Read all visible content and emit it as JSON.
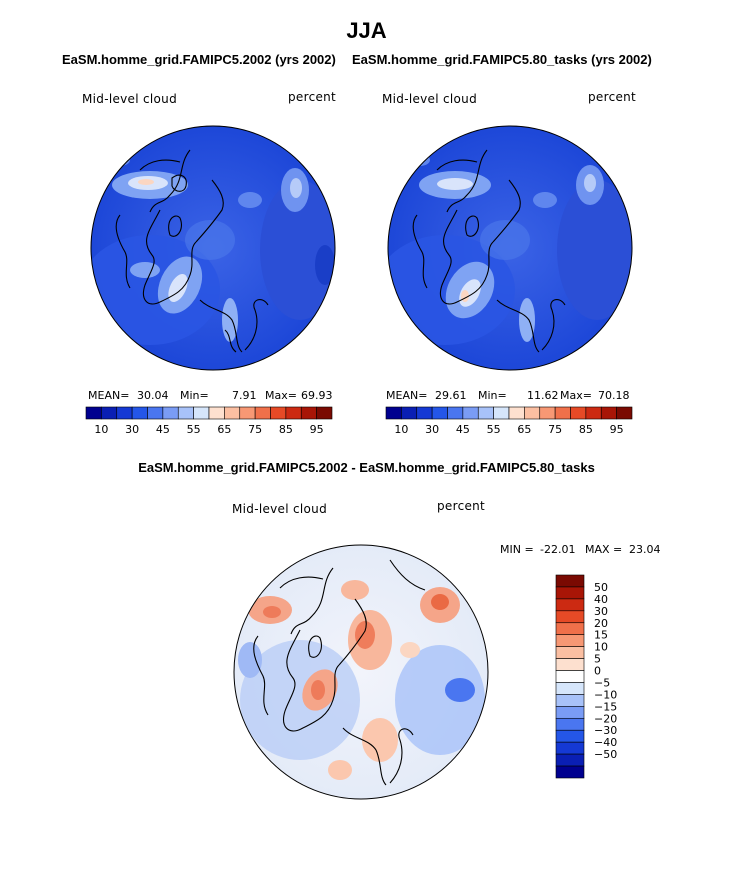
{
  "title": "JJA",
  "panels": [
    {
      "subtitle": "EaSM.homme_grid.FAMIPC5.2002 (yrs 2002)",
      "variable": "Mid-level cloud",
      "units": "percent",
      "stats": {
        "mean_label": "MEAN=",
        "mean": "30.04",
        "min_label": "Min=",
        "min": "7.91",
        "max_label": "Max=",
        "max": "69.93"
      }
    },
    {
      "subtitle": "EaSM.homme_grid.FAMIPC5.80_tasks (yrs 2002)",
      "variable": "Mid-level cloud",
      "units": "percent",
      "stats": {
        "mean_label": "MEAN=",
        "mean": "29.61",
        "min_label": "Min=",
        "min": "11.62",
        "max_label": "Max=",
        "max": "70.18"
      }
    }
  ],
  "abs_colorbar": {
    "colors": [
      "#00008f",
      "#0a1fb4",
      "#1539d4",
      "#2456e8",
      "#4a76f0",
      "#7a9cf5",
      "#a8c2f9",
      "#d6e6fb",
      "#fde0cf",
      "#fbbfa2",
      "#f79874",
      "#f0704a",
      "#e64a26",
      "#cc2a12",
      "#a81506",
      "#7a0a02"
    ],
    "tick_labels": [
      "10",
      "30",
      "45",
      "55",
      "65",
      "75",
      "85",
      "95"
    ]
  },
  "diff_panel": {
    "subtitle": "EaSM.homme_grid.FAMIPC5.2002 - EaSM.homme_grid.FAMIPC5.80_tasks",
    "variable": "Mid-level cloud",
    "units": "percent",
    "min_label": "MIN =",
    "min": "-22.01",
    "max_label": "MAX =",
    "max": "23.04"
  },
  "diff_colorbar": {
    "colors": [
      "#7a0a02",
      "#a81506",
      "#cc2a12",
      "#e64a26",
      "#f0704a",
      "#f79874",
      "#fbbfa2",
      "#fde0cf",
      "#ffffff",
      "#d6e6fb",
      "#a8c2f9",
      "#7a9cf5",
      "#4a76f0",
      "#2456e8",
      "#1539d4",
      "#0a1fb4",
      "#00008f"
    ],
    "tick_labels": [
      "50",
      "40",
      "30",
      "20",
      "15",
      "10",
      "5",
      "0",
      "−5",
      "−10",
      "−15",
      "−20",
      "−30",
      "−40",
      "−50"
    ]
  },
  "chart_data": [
    {
      "type": "heatmap",
      "title": "EaSM.homme_grid.FAMIPC5.2002 (yrs 2002)",
      "variable": "Mid-level cloud",
      "units": "percent",
      "projection": "polar stereographic, North Pole",
      "mean": 30.04,
      "min": 7.91,
      "max": 69.93,
      "levels": [
        10,
        15,
        20,
        25,
        30,
        35,
        40,
        45,
        50,
        55,
        60,
        65,
        70,
        75,
        80,
        85,
        90,
        95
      ]
    },
    {
      "type": "heatmap",
      "title": "EaSM.homme_grid.FAMIPC5.80_tasks (yrs 2002)",
      "variable": "Mid-level cloud",
      "units": "percent",
      "projection": "polar stereographic, North Pole",
      "mean": 29.61,
      "min": 11.62,
      "max": 70.18,
      "levels": [
        10,
        15,
        20,
        25,
        30,
        35,
        40,
        45,
        50,
        55,
        60,
        65,
        70,
        75,
        80,
        85,
        90,
        95
      ]
    },
    {
      "type": "heatmap",
      "title": "EaSM.homme_grid.FAMIPC5.2002 - EaSM.homme_grid.FAMIPC5.80_tasks",
      "variable": "Mid-level cloud",
      "units": "percent",
      "projection": "polar stereographic, North Pole",
      "min": -22.01,
      "max": 23.04,
      "levels": [
        -50,
        -40,
        -30,
        -20,
        -15,
        -10,
        -5,
        0,
        5,
        10,
        15,
        20,
        30,
        40,
        50
      ]
    }
  ]
}
